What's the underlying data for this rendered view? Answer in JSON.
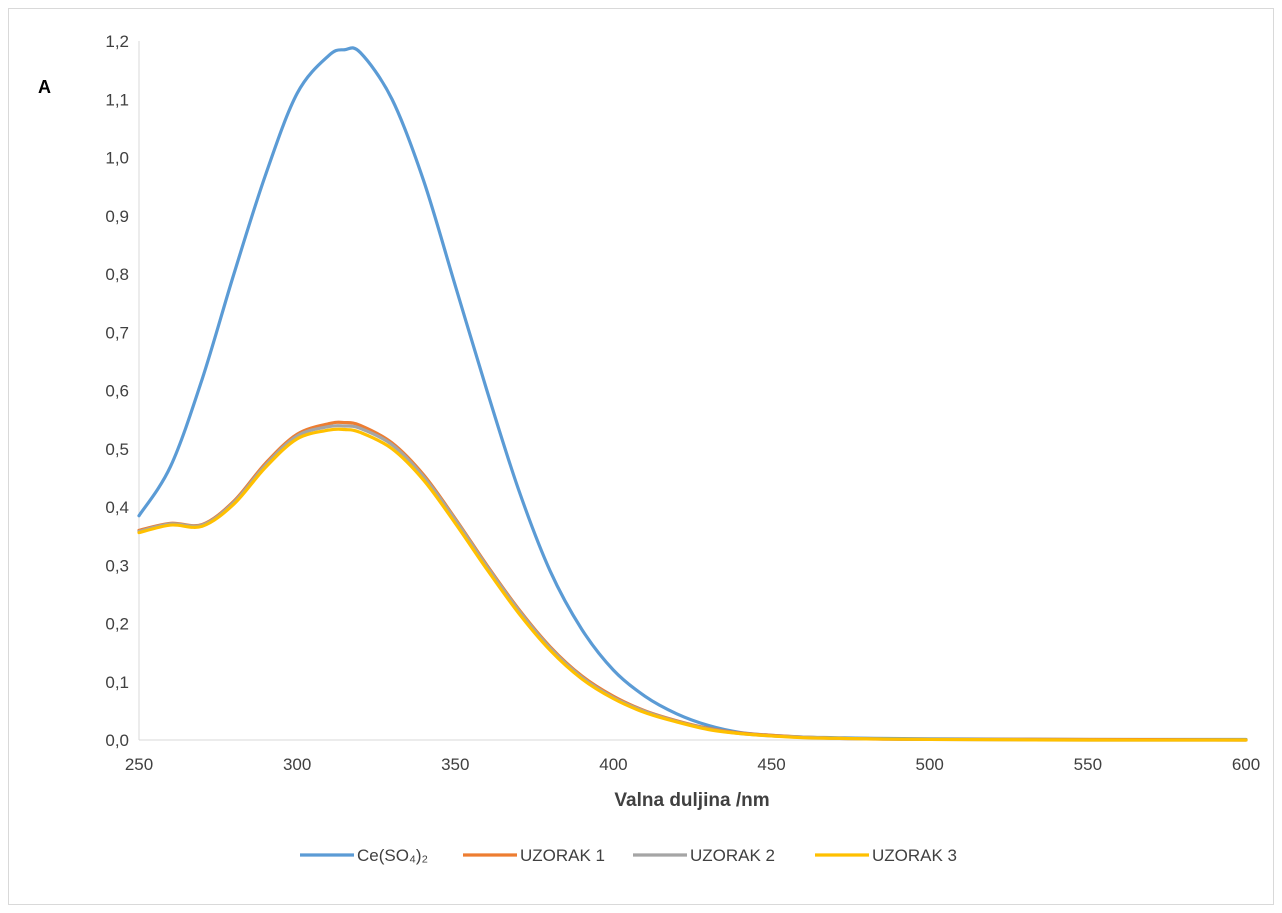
{
  "chart_data": {
    "type": "line",
    "title": "",
    "xlabel": "Valna duljina /nm",
    "ylabel": "A",
    "xlim": [
      250,
      600
    ],
    "ylim": [
      0,
      1.2
    ],
    "x_ticks": [
      "250",
      "300",
      "350",
      "400",
      "450",
      "500",
      "550",
      "600"
    ],
    "y_ticks": [
      "0,0",
      "0,1",
      "0,2",
      "0,3",
      "0,4",
      "0,5",
      "0,6",
      "0,7",
      "0,8",
      "0,9",
      "1,0",
      "1,1",
      "1,2"
    ],
    "grid": false,
    "legend_position": "bottom",
    "x": [
      250,
      260,
      270,
      280,
      290,
      300,
      310,
      315,
      320,
      330,
      340,
      350,
      360,
      370,
      380,
      390,
      400,
      410,
      420,
      430,
      440,
      450,
      460,
      470,
      480,
      500,
      550,
      600
    ],
    "series": [
      {
        "name": "Ce(SO₄)₂",
        "color": "#5b9bd5",
        "values": [
          0.385,
          0.47,
          0.62,
          0.8,
          0.97,
          1.11,
          1.175,
          1.185,
          1.18,
          1.1,
          0.96,
          0.78,
          0.6,
          0.43,
          0.29,
          0.19,
          0.12,
          0.075,
          0.045,
          0.025,
          0.013,
          0.008,
          0.005,
          0.004,
          0.003,
          0.002,
          0.001,
          0.001
        ]
      },
      {
        "name": "UZORAK 1",
        "color": "#ed7d31",
        "values": [
          0.36,
          0.372,
          0.37,
          0.41,
          0.475,
          0.525,
          0.543,
          0.545,
          0.54,
          0.51,
          0.455,
          0.38,
          0.3,
          0.225,
          0.16,
          0.11,
          0.075,
          0.05,
          0.033,
          0.02,
          0.012,
          0.008,
          0.005,
          0.003,
          0.002,
          0.001,
          0.001,
          0.0
        ]
      },
      {
        "name": "UZORAK 2",
        "color": "#a5a5a5",
        "values": [
          0.358,
          0.371,
          0.369,
          0.408,
          0.472,
          0.522,
          0.538,
          0.539,
          0.535,
          0.507,
          0.452,
          0.378,
          0.298,
          0.223,
          0.158,
          0.108,
          0.073,
          0.049,
          0.032,
          0.019,
          0.011,
          0.007,
          0.005,
          0.003,
          0.002,
          0.001,
          0.0,
          0.0
        ]
      },
      {
        "name": "UZORAK 3",
        "color": "#ffc000",
        "values": [
          0.356,
          0.369,
          0.367,
          0.405,
          0.468,
          0.517,
          0.532,
          0.533,
          0.528,
          0.5,
          0.446,
          0.372,
          0.293,
          0.218,
          0.154,
          0.105,
          0.071,
          0.047,
          0.031,
          0.018,
          0.011,
          0.007,
          0.004,
          0.003,
          0.002,
          0.001,
          0.0,
          0.0
        ]
      }
    ]
  }
}
